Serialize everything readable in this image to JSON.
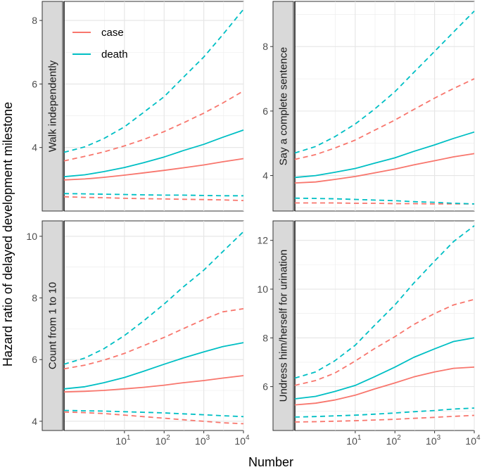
{
  "chart_data": {
    "type": "line",
    "xlabel": "Number",
    "ylabel": "Hazard ratio of delayed development milestone",
    "x_scale": "log10",
    "x_range": [
      0.3,
      10000
    ],
    "x_ticks": [
      {
        "value": 10,
        "base": "10",
        "exp": "1"
      },
      {
        "value": 100,
        "base": "10",
        "exp": "2"
      },
      {
        "value": 1000,
        "base": "10",
        "exp": "3"
      },
      {
        "value": 10000,
        "base": "10",
        "exp": "4"
      }
    ],
    "legend": {
      "position": "top-left",
      "entries": [
        {
          "name": "case",
          "color": "#F8766D"
        },
        {
          "name": "death",
          "color": "#00BFC4"
        }
      ]
    },
    "x": [
      0.3,
      1,
      3,
      10,
      30,
      100,
      300,
      1000,
      3000,
      10000
    ],
    "panels": [
      {
        "title": "Walk independently",
        "ylim": [
          2.0,
          8.6
        ],
        "yticks": [
          4,
          6,
          8
        ],
        "series": [
          {
            "group": "case",
            "line": "estimate",
            "values": [
              2.98,
              3.01,
              3.06,
              3.13,
              3.2,
              3.28,
              3.36,
              3.45,
              3.55,
              3.65
            ]
          },
          {
            "group": "case",
            "line": "upper",
            "values": [
              3.58,
              3.72,
              3.86,
              4.05,
              4.25,
              4.5,
              4.77,
              5.08,
              5.4,
              5.78
            ]
          },
          {
            "group": "case",
            "line": "lower",
            "values": [
              2.45,
              2.43,
              2.42,
              2.4,
              2.39,
              2.38,
              2.37,
              2.36,
              2.35,
              2.33
            ]
          },
          {
            "group": "death",
            "line": "estimate",
            "values": [
              3.08,
              3.14,
              3.24,
              3.37,
              3.52,
              3.7,
              3.9,
              4.1,
              4.32,
              4.55
            ]
          },
          {
            "group": "death",
            "line": "upper",
            "values": [
              3.85,
              4.02,
              4.28,
              4.65,
              5.1,
              5.6,
              6.2,
              6.85,
              7.55,
              8.35
            ]
          },
          {
            "group": "death",
            "line": "lower",
            "values": [
              2.55,
              2.54,
              2.53,
              2.52,
              2.51,
              2.5,
              2.5,
              2.49,
              2.48,
              2.48
            ]
          }
        ]
      },
      {
        "title": "Say a complete sentence",
        "ylim": [
          2.9,
          9.4
        ],
        "yticks": [
          4,
          6,
          8
        ],
        "series": [
          {
            "group": "case",
            "line": "estimate",
            "values": [
              3.77,
              3.8,
              3.88,
              3.97,
              4.08,
              4.2,
              4.33,
              4.46,
              4.58,
              4.68
            ]
          },
          {
            "group": "case",
            "line": "upper",
            "values": [
              4.5,
              4.65,
              4.85,
              5.1,
              5.4,
              5.72,
              6.05,
              6.4,
              6.7,
              7.0
            ]
          },
          {
            "group": "case",
            "line": "lower",
            "values": [
              3.15,
              3.15,
              3.15,
              3.14,
              3.14,
              3.13,
              3.13,
              3.12,
              3.12,
              3.12
            ]
          },
          {
            "group": "death",
            "line": "estimate",
            "values": [
              3.94,
              4.0,
              4.1,
              4.22,
              4.38,
              4.55,
              4.75,
              4.95,
              5.15,
              5.35
            ]
          },
          {
            "group": "death",
            "line": "upper",
            "values": [
              4.7,
              4.9,
              5.2,
              5.6,
              6.05,
              6.6,
              7.2,
              7.85,
              8.45,
              9.1
            ]
          },
          {
            "group": "death",
            "line": "lower",
            "values": [
              3.3,
              3.29,
              3.28,
              3.26,
              3.24,
              3.22,
              3.19,
              3.17,
              3.14,
              3.12
            ]
          }
        ]
      },
      {
        "title": "Count from 1 to 10",
        "ylim": [
          3.7,
          10.5
        ],
        "yticks": [
          4,
          6,
          8,
          10
        ],
        "series": [
          {
            "group": "case",
            "line": "estimate",
            "values": [
              4.95,
              4.97,
              5.0,
              5.05,
              5.1,
              5.17,
              5.25,
              5.32,
              5.4,
              5.48
            ]
          },
          {
            "group": "case",
            "line": "upper",
            "values": [
              5.7,
              5.82,
              5.98,
              6.2,
              6.45,
              6.72,
              7.0,
              7.3,
              7.55,
              7.65
            ]
          },
          {
            "group": "case",
            "line": "lower",
            "values": [
              4.3,
              4.28,
              4.25,
              4.2,
              4.15,
              4.1,
              4.05,
              4.0,
              3.95,
              3.92
            ]
          },
          {
            "group": "death",
            "line": "estimate",
            "values": [
              5.05,
              5.12,
              5.25,
              5.42,
              5.62,
              5.85,
              6.05,
              6.25,
              6.42,
              6.55
            ]
          },
          {
            "group": "death",
            "line": "upper",
            "values": [
              5.85,
              6.05,
              6.35,
              6.78,
              7.25,
              7.8,
              8.35,
              8.9,
              9.5,
              10.15
            ]
          },
          {
            "group": "death",
            "line": "lower",
            "values": [
              4.35,
              4.34,
              4.33,
              4.31,
              4.29,
              4.27,
              4.24,
              4.21,
              4.18,
              4.15
            ]
          }
        ]
      },
      {
        "title": "Undress him/herself for urination",
        "ylim": [
          4.2,
          12.8
        ],
        "yticks": [
          6,
          8,
          10,
          12
        ],
        "series": [
          {
            "group": "case",
            "line": "estimate",
            "values": [
              5.25,
              5.32,
              5.45,
              5.65,
              5.9,
              6.15,
              6.4,
              6.6,
              6.75,
              6.8
            ]
          },
          {
            "group": "case",
            "line": "upper",
            "values": [
              6.05,
              6.25,
              6.55,
              7.05,
              7.55,
              8.05,
              8.55,
              9.0,
              9.35,
              9.58
            ]
          },
          {
            "group": "case",
            "line": "lower",
            "values": [
              4.55,
              4.56,
              4.58,
              4.6,
              4.63,
              4.66,
              4.7,
              4.74,
              4.78,
              4.82
            ]
          },
          {
            "group": "death",
            "line": "estimate",
            "values": [
              5.5,
              5.6,
              5.8,
              6.05,
              6.4,
              6.8,
              7.2,
              7.55,
              7.85,
              8.0
            ]
          },
          {
            "group": "death",
            "line": "upper",
            "values": [
              6.35,
              6.6,
              7.05,
              7.7,
              8.5,
              9.35,
              10.25,
              11.15,
              11.95,
              12.6
            ]
          },
          {
            "group": "death",
            "line": "lower",
            "values": [
              4.75,
              4.77,
              4.8,
              4.83,
              4.87,
              4.92,
              4.97,
              5.02,
              5.08,
              5.12
            ]
          }
        ]
      }
    ]
  }
}
